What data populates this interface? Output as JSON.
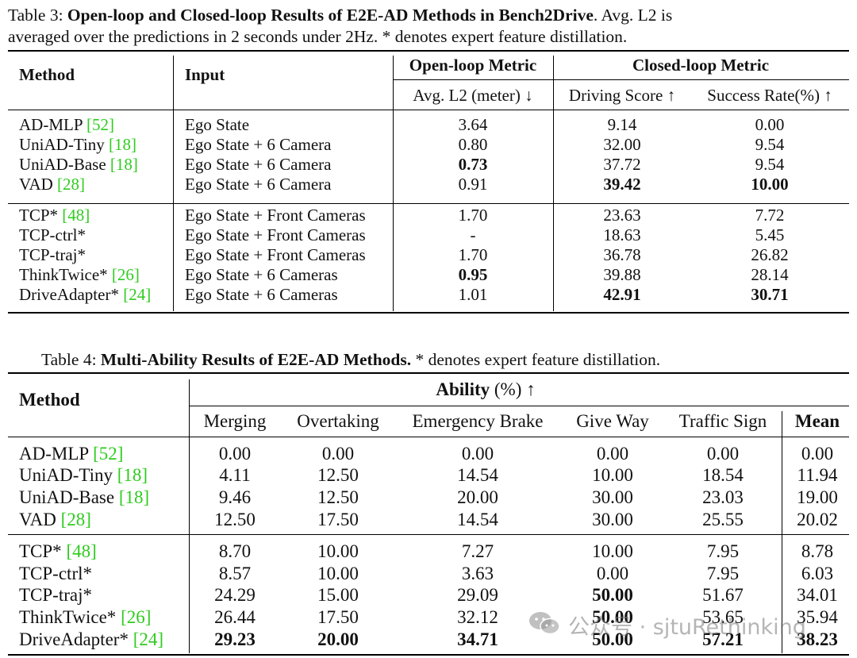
{
  "table3": {
    "caption_label": "Table 3:",
    "caption_bold": "Open-loop and Closed-loop Results of E2E-AD Methods in Bench2Drive",
    "caption_rest_1": ". Avg. L2 is",
    "caption_line2": "averaged over the predictions in 2 seconds under 2Hz. * denotes expert feature distillation.",
    "headers": {
      "method": "Method",
      "input": "Input",
      "open_loop": "Open-loop Metric",
      "closed_loop": "Closed-loop Metric",
      "avg_l2": "Avg. L2 (meter) ↓",
      "driving_score": "Driving Score ↑",
      "success_rate": "Success Rate(%) ↑"
    },
    "rows": [
      {
        "method": "AD-MLP ",
        "ref": "[52]",
        "input": "Ego State",
        "l2": "3.64",
        "ds": "9.14",
        "sr": "0.00"
      },
      {
        "method": "UniAD-Tiny ",
        "ref": "[18]",
        "input": "Ego State + 6 Camera",
        "l2": "0.80",
        "ds": "32.00",
        "sr": "9.54"
      },
      {
        "method": "UniAD-Base ",
        "ref": "[18]",
        "input": "Ego State + 6 Camera",
        "l2": "0.73",
        "ds": "37.72",
        "sr": "9.54"
      },
      {
        "method": "VAD ",
        "ref": "[28]",
        "input": "Ego State + 6 Camera",
        "l2": "0.91",
        "ds": "39.42",
        "sr": "10.00"
      },
      {
        "method": "TCP* ",
        "ref": "[48]",
        "input": "Ego State + Front Cameras",
        "l2": "1.70",
        "ds": "23.63",
        "sr": "7.72"
      },
      {
        "method": "TCP-ctrl*",
        "ref": "",
        "input": "Ego State + Front Cameras",
        "l2": "-",
        "ds": "18.63",
        "sr": "5.45"
      },
      {
        "method": "TCP-traj*",
        "ref": "",
        "input": "Ego State + Front Cameras",
        "l2": "1.70",
        "ds": "36.78",
        "sr": "26.82"
      },
      {
        "method": "ThinkTwice* ",
        "ref": "[26]",
        "input": "Ego State + 6 Cameras",
        "l2": "0.95",
        "ds": "39.88",
        "sr": "28.14"
      },
      {
        "method": "DriveAdapter* ",
        "ref": "[24]",
        "input": "Ego State + 6 Cameras",
        "l2": "1.01",
        "ds": "42.91",
        "sr": "30.71"
      }
    ]
  },
  "table4": {
    "caption_label": "Table 4:",
    "caption_bold": "Multi-Ability Results of E2E-AD Methods.",
    "caption_rest": " * denotes expert feature distillation.",
    "headers": {
      "method": "Method",
      "ability_bold": "Ability",
      "ability_rest": " (%) ↑",
      "merging": "Merging",
      "overtaking": "Overtaking",
      "emergency_brake": "Emergency Brake",
      "give_way": "Give Way",
      "traffic_sign": "Traffic Sign",
      "mean": "Mean"
    },
    "rows": [
      {
        "method": "AD-MLP ",
        "ref": "[52]",
        "merging": "0.00",
        "overtaking": "0.00",
        "brake": "0.00",
        "giveway": "0.00",
        "sign": "0.00",
        "mean": "0.00"
      },
      {
        "method": "UniAD-Tiny ",
        "ref": "[18]",
        "merging": "4.11",
        "overtaking": "12.50",
        "brake": "14.54",
        "giveway": "10.00",
        "sign": "18.54",
        "mean": "11.94"
      },
      {
        "method": "UniAD-Base ",
        "ref": "[18]",
        "merging": "9.46",
        "overtaking": "12.50",
        "brake": "20.00",
        "giveway": "30.00",
        "sign": "23.03",
        "mean": "19.00"
      },
      {
        "method": "VAD ",
        "ref": "[28]",
        "merging": "12.50",
        "overtaking": "17.50",
        "brake": "14.54",
        "giveway": "30.00",
        "sign": "25.55",
        "mean": "20.02"
      },
      {
        "method": "TCP* ",
        "ref": "[48]",
        "merging": "8.70",
        "overtaking": "10.00",
        "brake": "7.27",
        "giveway": "10.00",
        "sign": "7.95",
        "mean": "8.78"
      },
      {
        "method": "TCP-ctrl*",
        "ref": "",
        "merging": "8.57",
        "overtaking": "10.00",
        "brake": "3.63",
        "giveway": "0.00",
        "sign": "7.95",
        "mean": "6.03"
      },
      {
        "method": "TCP-traj*",
        "ref": "",
        "merging": "24.29",
        "overtaking": "15.00",
        "brake": "29.09",
        "giveway": "50.00",
        "sign": "51.67",
        "mean": "34.01"
      },
      {
        "method": "ThinkTwice* ",
        "ref": "[26]",
        "merging": "26.44",
        "overtaking": "17.50",
        "brake": "32.12",
        "giveway": "50.00",
        "sign": "53.65",
        "mean": "35.94"
      },
      {
        "method": "DriveAdapter* ",
        "ref": "[24]",
        "merging": "29.23",
        "overtaking": "20.00",
        "brake": "34.71",
        "giveway": "50.00",
        "sign": "57.21",
        "mean": "38.23"
      }
    ]
  },
  "watermark": {
    "icon": "wechat-icon",
    "text": "公众号 · sjtuRethinking"
  },
  "colors": {
    "reference_link": "#2fcc1f",
    "text": "#111111"
  }
}
